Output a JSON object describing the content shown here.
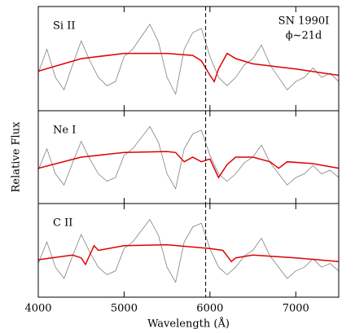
{
  "chart_data": [
    {
      "type": "line",
      "label": "Si II",
      "annotations": [
        "SN 1990I",
        "ϕ~21d"
      ],
      "xlim": [
        4000,
        7500
      ],
      "ylim": [
        0,
        1
      ],
      "vline": 5950,
      "series": [
        {
          "color": "#808080",
          "x": [
            4000,
            4100,
            4200,
            4300,
            4400,
            4500,
            4600,
            4700,
            4800,
            4900,
            5000,
            5100,
            5200,
            5300,
            5400,
            5500,
            5600,
            5700,
            5800,
            5900,
            6000,
            6100,
            6200,
            6300,
            6400,
            6500,
            6600,
            6700,
            6800,
            6900,
            7000,
            7100,
            7200,
            7300,
            7400,
            7500
          ],
          "values": [
            0.36,
            0.59,
            0.32,
            0.2,
            0.44,
            0.67,
            0.48,
            0.32,
            0.24,
            0.28,
            0.52,
            0.59,
            0.71,
            0.83,
            0.66,
            0.32,
            0.16,
            0.59,
            0.75,
            0.79,
            0.52,
            0.32,
            0.24,
            0.32,
            0.44,
            0.5,
            0.63,
            0.44,
            0.32,
            0.2,
            0.28,
            0.32,
            0.41,
            0.32,
            0.36,
            0.28
          ]
        },
        {
          "color": "#e00000",
          "x": [
            4000,
            4500,
            5000,
            5500,
            5800,
            5900,
            6000,
            6050,
            6100,
            6200,
            6300,
            6500,
            7000,
            7500
          ],
          "values": [
            0.38,
            0.5,
            0.55,
            0.55,
            0.53,
            0.48,
            0.34,
            0.28,
            0.4,
            0.55,
            0.5,
            0.45,
            0.4,
            0.34
          ]
        }
      ]
    },
    {
      "type": "line",
      "label": "Ne I",
      "ylabel": "Relative Flux",
      "xlim": [
        4000,
        7500
      ],
      "ylim": [
        0,
        1
      ],
      "vline": 5950,
      "series": [
        {
          "color": "#808080",
          "x": [
            4000,
            4100,
            4200,
            4300,
            4400,
            4500,
            4600,
            4700,
            4800,
            4900,
            5000,
            5100,
            5200,
            5300,
            5400,
            5500,
            5600,
            5700,
            5800,
            5900,
            6000,
            6100,
            6200,
            6300,
            6400,
            6500,
            6600,
            6700,
            6800,
            6900,
            7000,
            7100,
            7200,
            7300,
            7400,
            7500
          ],
          "values": [
            0.36,
            0.59,
            0.32,
            0.2,
            0.44,
            0.67,
            0.48,
            0.32,
            0.24,
            0.28,
            0.52,
            0.59,
            0.71,
            0.83,
            0.66,
            0.32,
            0.16,
            0.59,
            0.75,
            0.79,
            0.52,
            0.32,
            0.24,
            0.32,
            0.44,
            0.5,
            0.63,
            0.44,
            0.32,
            0.2,
            0.28,
            0.32,
            0.41,
            0.32,
            0.36,
            0.28
          ]
        },
        {
          "color": "#e00000",
          "x": [
            4000,
            4500,
            5000,
            5500,
            5600,
            5700,
            5800,
            5900,
            6000,
            6100,
            6200,
            6300,
            6500,
            6700,
            6800,
            6900,
            7200,
            7500
          ],
          "values": [
            0.38,
            0.5,
            0.55,
            0.56,
            0.55,
            0.45,
            0.5,
            0.45,
            0.48,
            0.28,
            0.42,
            0.5,
            0.5,
            0.45,
            0.38,
            0.45,
            0.43,
            0.38
          ]
        }
      ]
    },
    {
      "type": "line",
      "label": "C II",
      "xlabel": "Wavelength (Å)",
      "xlim": [
        4000,
        7500
      ],
      "ylim": [
        0,
        1
      ],
      "vline": 5950,
      "xticks": [
        4000,
        5000,
        6000,
        7000
      ],
      "series": [
        {
          "color": "#808080",
          "x": [
            4000,
            4100,
            4200,
            4300,
            4400,
            4500,
            4600,
            4700,
            4800,
            4900,
            5000,
            5100,
            5200,
            5300,
            5400,
            5500,
            5600,
            5700,
            5800,
            5900,
            6000,
            6100,
            6200,
            6300,
            6400,
            6500,
            6600,
            6700,
            6800,
            6900,
            7000,
            7100,
            7200,
            7300,
            7400,
            7500
          ],
          "values": [
            0.36,
            0.59,
            0.32,
            0.2,
            0.44,
            0.67,
            0.48,
            0.32,
            0.24,
            0.28,
            0.52,
            0.59,
            0.71,
            0.83,
            0.66,
            0.32,
            0.16,
            0.59,
            0.75,
            0.79,
            0.52,
            0.32,
            0.24,
            0.32,
            0.44,
            0.5,
            0.63,
            0.44,
            0.32,
            0.2,
            0.28,
            0.32,
            0.41,
            0.32,
            0.36,
            0.28
          ]
        },
        {
          "color": "#e00000",
          "x": [
            4000,
            4400,
            4500,
            4550,
            4650,
            4700,
            5000,
            5500,
            6000,
            6150,
            6250,
            6300,
            6500,
            7000,
            7500
          ],
          "values": [
            0.4,
            0.45,
            0.42,
            0.35,
            0.55,
            0.5,
            0.55,
            0.56,
            0.52,
            0.5,
            0.38,
            0.42,
            0.45,
            0.42,
            0.38
          ]
        }
      ]
    }
  ]
}
